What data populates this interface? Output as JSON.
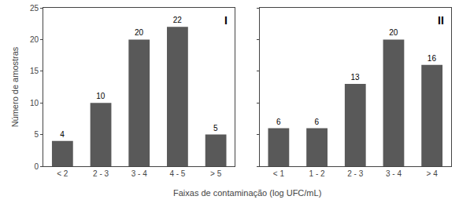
{
  "chart_data": [
    {
      "type": "bar",
      "categories": [
        "< 2",
        "2 - 3",
        "3 - 4",
        "4 - 5",
        "> 5"
      ],
      "values": [
        4,
        10,
        20,
        22,
        5
      ],
      "color": "#595959",
      "ylim": [
        0,
        25
      ],
      "yticks": [
        0,
        5,
        10,
        15,
        20,
        25
      ],
      "ylabel": "Número de amostras",
      "xlabel": "Faixas de contaminação (log UFC/mL)",
      "annotations": [
        "I"
      ],
      "data_labels": true,
      "grid": false
    },
    {
      "type": "bar",
      "categories": [
        "< 1",
        "1 - 2",
        "2 - 3",
        "3 - 4",
        "> 4"
      ],
      "values": [
        6,
        6,
        13,
        20,
        16
      ],
      "color": "#595959",
      "ylim": [
        0,
        25
      ],
      "yticks": [
        0,
        5,
        10,
        15,
        20,
        25
      ],
      "annotations": [
        "II"
      ],
      "data_labels": true,
      "tick_labels": "x",
      "grid": false
    }
  ]
}
